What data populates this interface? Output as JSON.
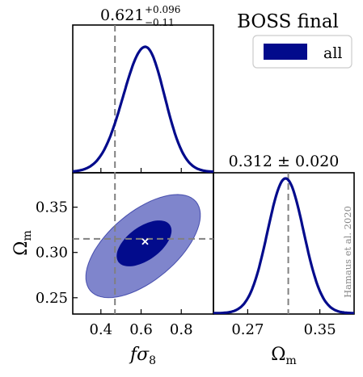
{
  "chart_data": {
    "type": "corner",
    "title": "BOSS final",
    "legend": {
      "entries": [
        "all"
      ],
      "placement": "top-right",
      "color": "#020b8c"
    },
    "credit": "Hamaus et al. 2020",
    "line_color": "#020b8c",
    "fill_inner_color": "#020b8c",
    "fill_outer_color": "#7f85cc",
    "marker_color": "#ffffff",
    "reference_line_color": "#808080",
    "parameters": [
      {
        "name": "fσ8",
        "label_main": "f",
        "label_sigma": "σ",
        "label_sub": "8"
      },
      {
        "name": "Ωm",
        "label_main": "Ω",
        "label_sub": "m"
      }
    ],
    "fs8": {
      "mean": 0.621,
      "err_plus": 0.096,
      "err_minus": 0.11,
      "header_main": "0.621",
      "header_sup": "+0.096",
      "header_sub": "−0.11",
      "reference": 0.47,
      "xlim": [
        0.26,
        0.96
      ],
      "ticks": [
        0.4,
        0.6,
        0.8
      ],
      "tick_labels": [
        "0.4",
        "0.6",
        "0.8"
      ]
    },
    "om": {
      "mean": 0.312,
      "err": 0.02,
      "header": "0.312 ± 0.020",
      "reference": 0.315,
      "xlim": [
        0.232,
        0.388
      ],
      "ticks": [
        0.27,
        0.35
      ],
      "tick_labels": [
        "0.27",
        "0.35"
      ],
      "ylim": [
        0.232,
        0.388
      ],
      "yticks": [
        0.25,
        0.3,
        0.35
      ],
      "ytick_labels": [
        "0.25",
        "0.30",
        "0.35"
      ]
    },
    "best_fit": {
      "x": 0.62,
      "y": 0.312
    },
    "contours": {
      "inner_1sigma": {
        "cx": 0.615,
        "cy": 0.31,
        "sx": 0.07,
        "sy": 0.013,
        "rho": 0.55
      },
      "outer_2sigma": {
        "cx": 0.61,
        "cy": 0.307,
        "sx": 0.15,
        "sy": 0.03,
        "rho": 0.6
      }
    }
  }
}
